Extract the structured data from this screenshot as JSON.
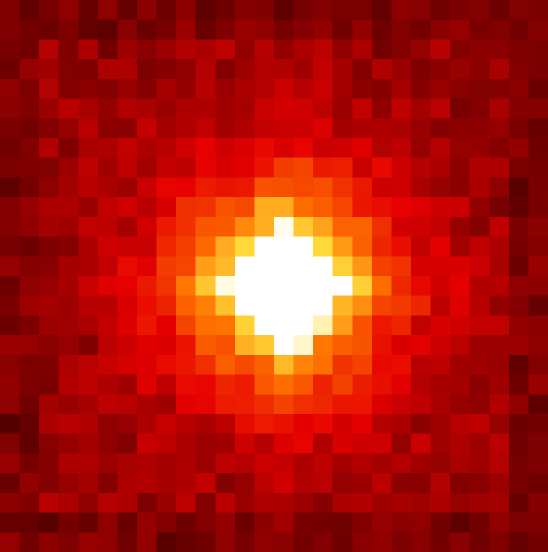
{
  "image": {
    "kind": "pixelated-intensity-heatmap",
    "colormap": "hot",
    "peak_color": "#ffffff",
    "low_color": "#4a0000",
    "grid": {
      "rows": 28,
      "cols": 28
    },
    "peak": {
      "row": 14,
      "col": 14,
      "level": 1.0
    }
  },
  "chart_data": {
    "type": "heatmap",
    "title": "",
    "xlabel": "",
    "ylabel": "",
    "grid": false,
    "legend": "none",
    "rows": 28,
    "cols": 28,
    "center": {
      "row": 14,
      "col": 14
    },
    "value_range": [
      0,
      1
    ],
    "description_values": {
      "background_level": 0.18,
      "peak_level": 1.0
    }
  }
}
